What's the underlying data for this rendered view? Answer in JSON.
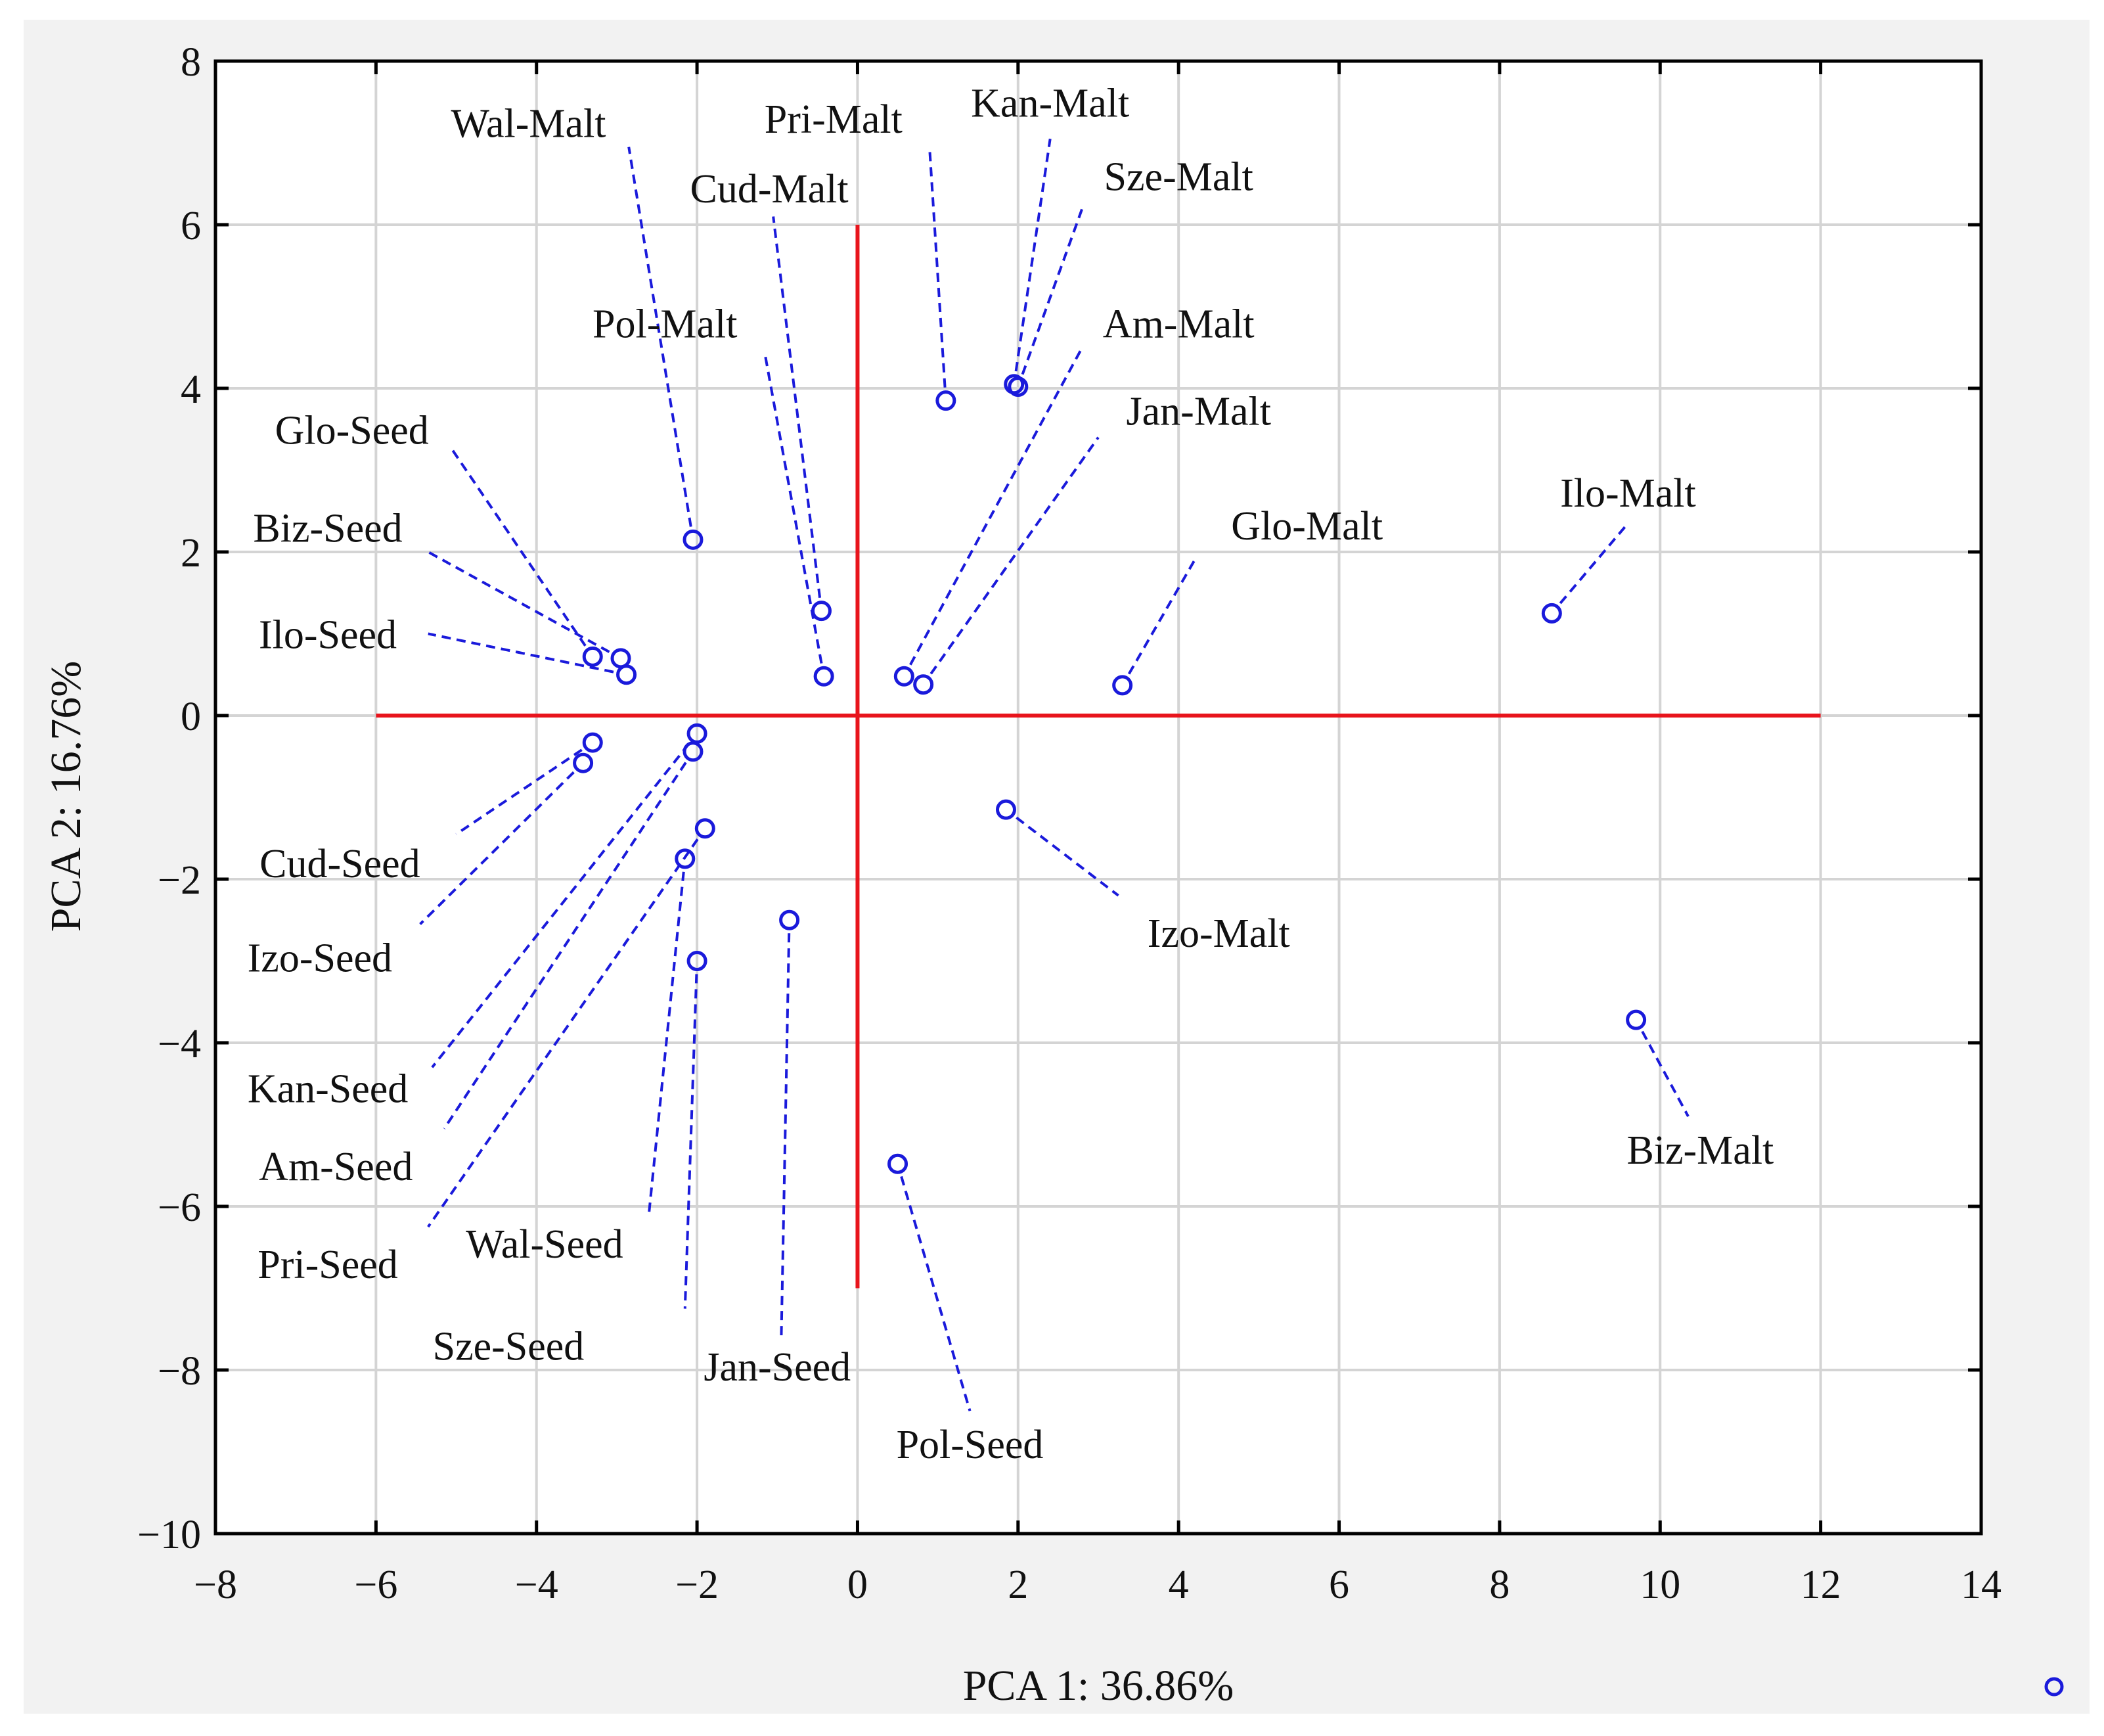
{
  "chart_data": {
    "type": "scatter",
    "title": "",
    "xlabel": "PCA 1: 36.86%",
    "ylabel": "PCA 2: 16.76%",
    "xlim": [
      -8,
      14
    ],
    "ylim": [
      -10,
      8
    ],
    "grid": true,
    "xticks": [
      -8,
      -6,
      -4,
      -2,
      0,
      2,
      4,
      6,
      8,
      10,
      12,
      14
    ],
    "yticks": [
      -10,
      -8,
      -6,
      -4,
      -2,
      0,
      2,
      4,
      6,
      8
    ],
    "xtick_labels": [
      "−8",
      "−6",
      "−4",
      "−2",
      "0",
      "2",
      "4",
      "6",
      "8",
      "10",
      "12",
      "14"
    ],
    "ytick_labels": [
      "−10",
      "−8",
      "−6",
      "−4",
      "−2",
      "0",
      "2",
      "4",
      "6",
      "8"
    ],
    "reference_lines": [
      {
        "orientation": "horizontal",
        "value": 0,
        "from": -6,
        "to": 12,
        "color": "#e8141c"
      },
      {
        "orientation": "vertical",
        "value": 0,
        "from": -7,
        "to": 6,
        "color": "#e8141c"
      }
    ],
    "marker_color": "#1a1adb",
    "leader_color": "#1a1adb",
    "points": [
      {
        "name": "Wal-Malt",
        "x": -2.05,
        "y": 2.15,
        "label_x": -4.1,
        "label_y": 7.25,
        "leader_end": [
          -2.85,
          6.95
        ]
      },
      {
        "name": "Pri-Malt",
        "x": 1.1,
        "y": 3.85,
        "label_x": -0.3,
        "label_y": 7.3,
        "leader_end": [
          0.9,
          6.9
        ]
      },
      {
        "name": "Kan-Malt",
        "x": 1.95,
        "y": 4.05,
        "label_x": 2.4,
        "label_y": 7.5,
        "leader_end": [
          2.4,
          7.05
        ]
      },
      {
        "name": "Sze-Malt",
        "x": 2.0,
        "y": 4.02,
        "label_x": 4.0,
        "label_y": 6.6,
        "leader_end": [
          2.8,
          6.2
        ]
      },
      {
        "name": "Cud-Malt",
        "x": -0.45,
        "y": 1.28,
        "label_x": -1.1,
        "label_y": 6.45,
        "leader_end": [
          -1.05,
          6.1
        ]
      },
      {
        "name": "Pol-Malt",
        "x": -0.42,
        "y": 0.48,
        "label_x": -2.4,
        "label_y": 4.8,
        "leader_end": [
          -1.15,
          4.4
        ]
      },
      {
        "name": "Am-Malt",
        "x": 0.58,
        "y": 0.48,
        "label_x": 4.0,
        "label_y": 4.8,
        "leader_end": [
          2.8,
          4.5
        ]
      },
      {
        "name": "Jan-Malt",
        "x": 0.82,
        "y": 0.38,
        "label_x": 4.25,
        "label_y": 3.73,
        "leader_end": [
          3.0,
          3.4
        ]
      },
      {
        "name": "Glo-Malt",
        "x": 3.3,
        "y": 0.37,
        "label_x": 5.6,
        "label_y": 2.33,
        "leader_end": [
          4.2,
          1.9
        ]
      },
      {
        "name": "Ilo-Malt",
        "x": 8.65,
        "y": 1.25,
        "label_x": 9.6,
        "label_y": 2.73,
        "leader_end": [
          9.6,
          2.35
        ]
      },
      {
        "name": "Glo-Seed",
        "x": -3.3,
        "y": 0.72,
        "label_x": -6.3,
        "label_y": 3.5,
        "leader_end": [
          -5.05,
          3.25
        ]
      },
      {
        "name": "Biz-Seed",
        "x": -2.95,
        "y": 0.7,
        "label_x": -6.6,
        "label_y": 2.3,
        "leader_end": [
          -5.35,
          2.0
        ]
      },
      {
        "name": "Ilo-Seed",
        "x": -2.88,
        "y": 0.5,
        "label_x": -6.6,
        "label_y": 1.0,
        "leader_end": [
          -5.35,
          1.0
        ]
      },
      {
        "name": "Cud-Seed",
        "x": -3.3,
        "y": -0.33,
        "label_x": -6.45,
        "label_y": -1.8,
        "leader_end": [
          -5.0,
          -1.45
        ]
      },
      {
        "name": "Izo-Seed",
        "x": -3.42,
        "y": -0.58,
        "label_x": -6.7,
        "label_y": -2.95,
        "leader_end": [
          -5.45,
          -2.55
        ]
      },
      {
        "name": "Kan-Seed",
        "x": -2.0,
        "y": -0.22,
        "label_x": -6.6,
        "label_y": -4.55,
        "leader_end": [
          -5.3,
          -4.3
        ]
      },
      {
        "name": "Am-Seed",
        "x": -2.05,
        "y": -0.44,
        "label_x": -6.5,
        "label_y": -5.5,
        "leader_end": [
          -5.15,
          -5.05
        ]
      },
      {
        "name": "Pri-Seed",
        "x": -1.9,
        "y": -1.38,
        "label_x": -6.6,
        "label_y": -6.7,
        "leader_end": [
          -5.35,
          -6.25
        ]
      },
      {
        "name": "Wal-Seed",
        "x": -2.15,
        "y": -1.75,
        "label_x": -3.9,
        "label_y": -6.45,
        "leader_end": [
          -2.6,
          -6.1
        ]
      },
      {
        "name": "Sze-Seed",
        "x": -2.0,
        "y": -3.0,
        "label_x": -4.35,
        "label_y": -7.7,
        "leader_end": [
          -2.15,
          -7.25
        ]
      },
      {
        "name": "Jan-Seed",
        "x": -0.85,
        "y": -2.5,
        "label_x": -1.0,
        "label_y": -7.95,
        "leader_end": [
          -0.95,
          -7.6
        ]
      },
      {
        "name": "Izo-Malt",
        "x": 1.85,
        "y": -1.15,
        "label_x": 4.5,
        "label_y": -2.65,
        "leader_end": [
          3.25,
          -2.2
        ]
      },
      {
        "name": "Biz-Malt",
        "x": 9.7,
        "y": -3.72,
        "label_x": 10.5,
        "label_y": -5.3,
        "leader_end": [
          10.35,
          -4.9
        ]
      },
      {
        "name": "Pol-Seed",
        "x": 0.5,
        "y": -5.48,
        "label_x": 1.4,
        "label_y": -8.9,
        "leader_end": [
          1.4,
          -8.5
        ]
      }
    ],
    "legend": {
      "placement": "bottom-right",
      "entries": [
        ""
      ]
    }
  }
}
